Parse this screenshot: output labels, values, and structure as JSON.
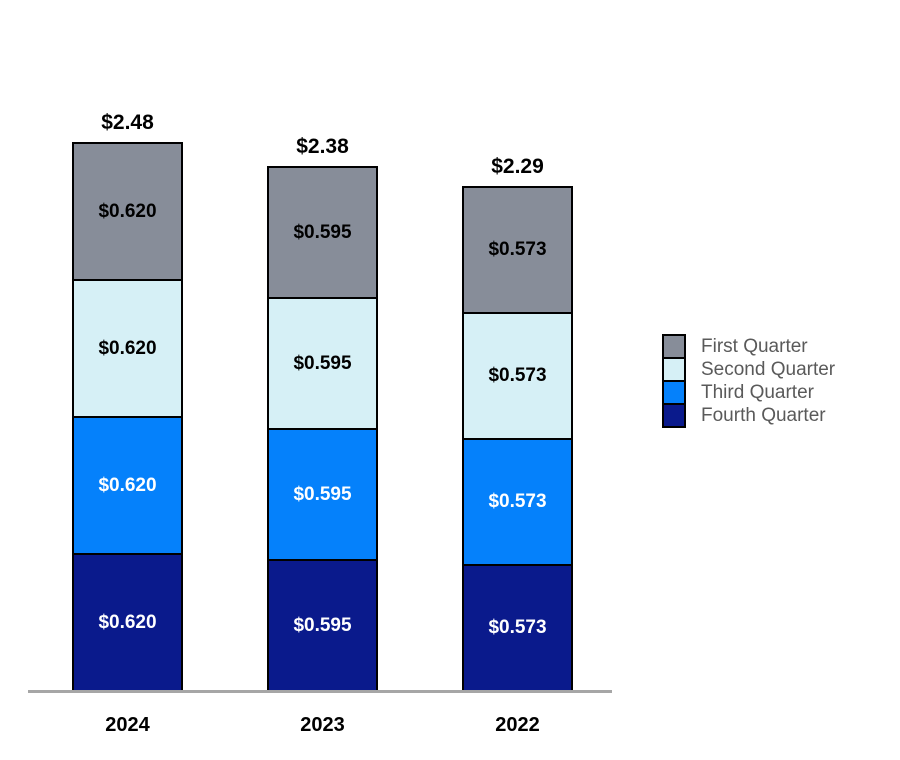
{
  "chart_data": {
    "type": "bar",
    "stacked": true,
    "title": "",
    "xlabel": "",
    "ylabel": "",
    "categories": [
      "2024",
      "2023",
      "2022"
    ],
    "series": [
      {
        "name": "First Quarter",
        "values": [
          0.62,
          0.595,
          0.573
        ],
        "labels": [
          "$0.620",
          "$0.595",
          "$0.573"
        ],
        "color": "#878D99",
        "label_color": "#000000"
      },
      {
        "name": "Second Quarter",
        "values": [
          0.62,
          0.595,
          0.573
        ],
        "labels": [
          "$0.620",
          "$0.595",
          "$0.573"
        ],
        "color": "#D6F0F6",
        "label_color": "#000000"
      },
      {
        "name": "Third Quarter",
        "values": [
          0.62,
          0.595,
          0.573
        ],
        "labels": [
          "$0.620",
          "$0.595",
          "$0.573"
        ],
        "color": "#0581FB",
        "label_color": "#FFFFFF"
      },
      {
        "name": "Fourth Quarter",
        "values": [
          0.62,
          0.595,
          0.573
        ],
        "labels": [
          "$0.620",
          "$0.595",
          "$0.573"
        ],
        "color": "#0A1A8C",
        "label_color": "#FFFFFF"
      }
    ],
    "totals": [
      "$2.48",
      "$2.38",
      "$2.29"
    ],
    "stack_order_top_to_bottom": [
      "First Quarter",
      "Second Quarter",
      "Third Quarter",
      "Fourth Quarter"
    ],
    "legend": {
      "position": "right",
      "entries": [
        "First Quarter",
        "Second Quarter",
        "Third Quarter",
        "Fourth Quarter"
      ]
    },
    "axis": {
      "baseline_color": "#A6A6A6",
      "grid": false
    },
    "ylim": [
      0,
      2.6
    ],
    "colors": {
      "segment_border": "#000000",
      "total_label_text": "#000000",
      "category_label_text": "#000000",
      "legend_text": "#5A5A5A"
    }
  }
}
